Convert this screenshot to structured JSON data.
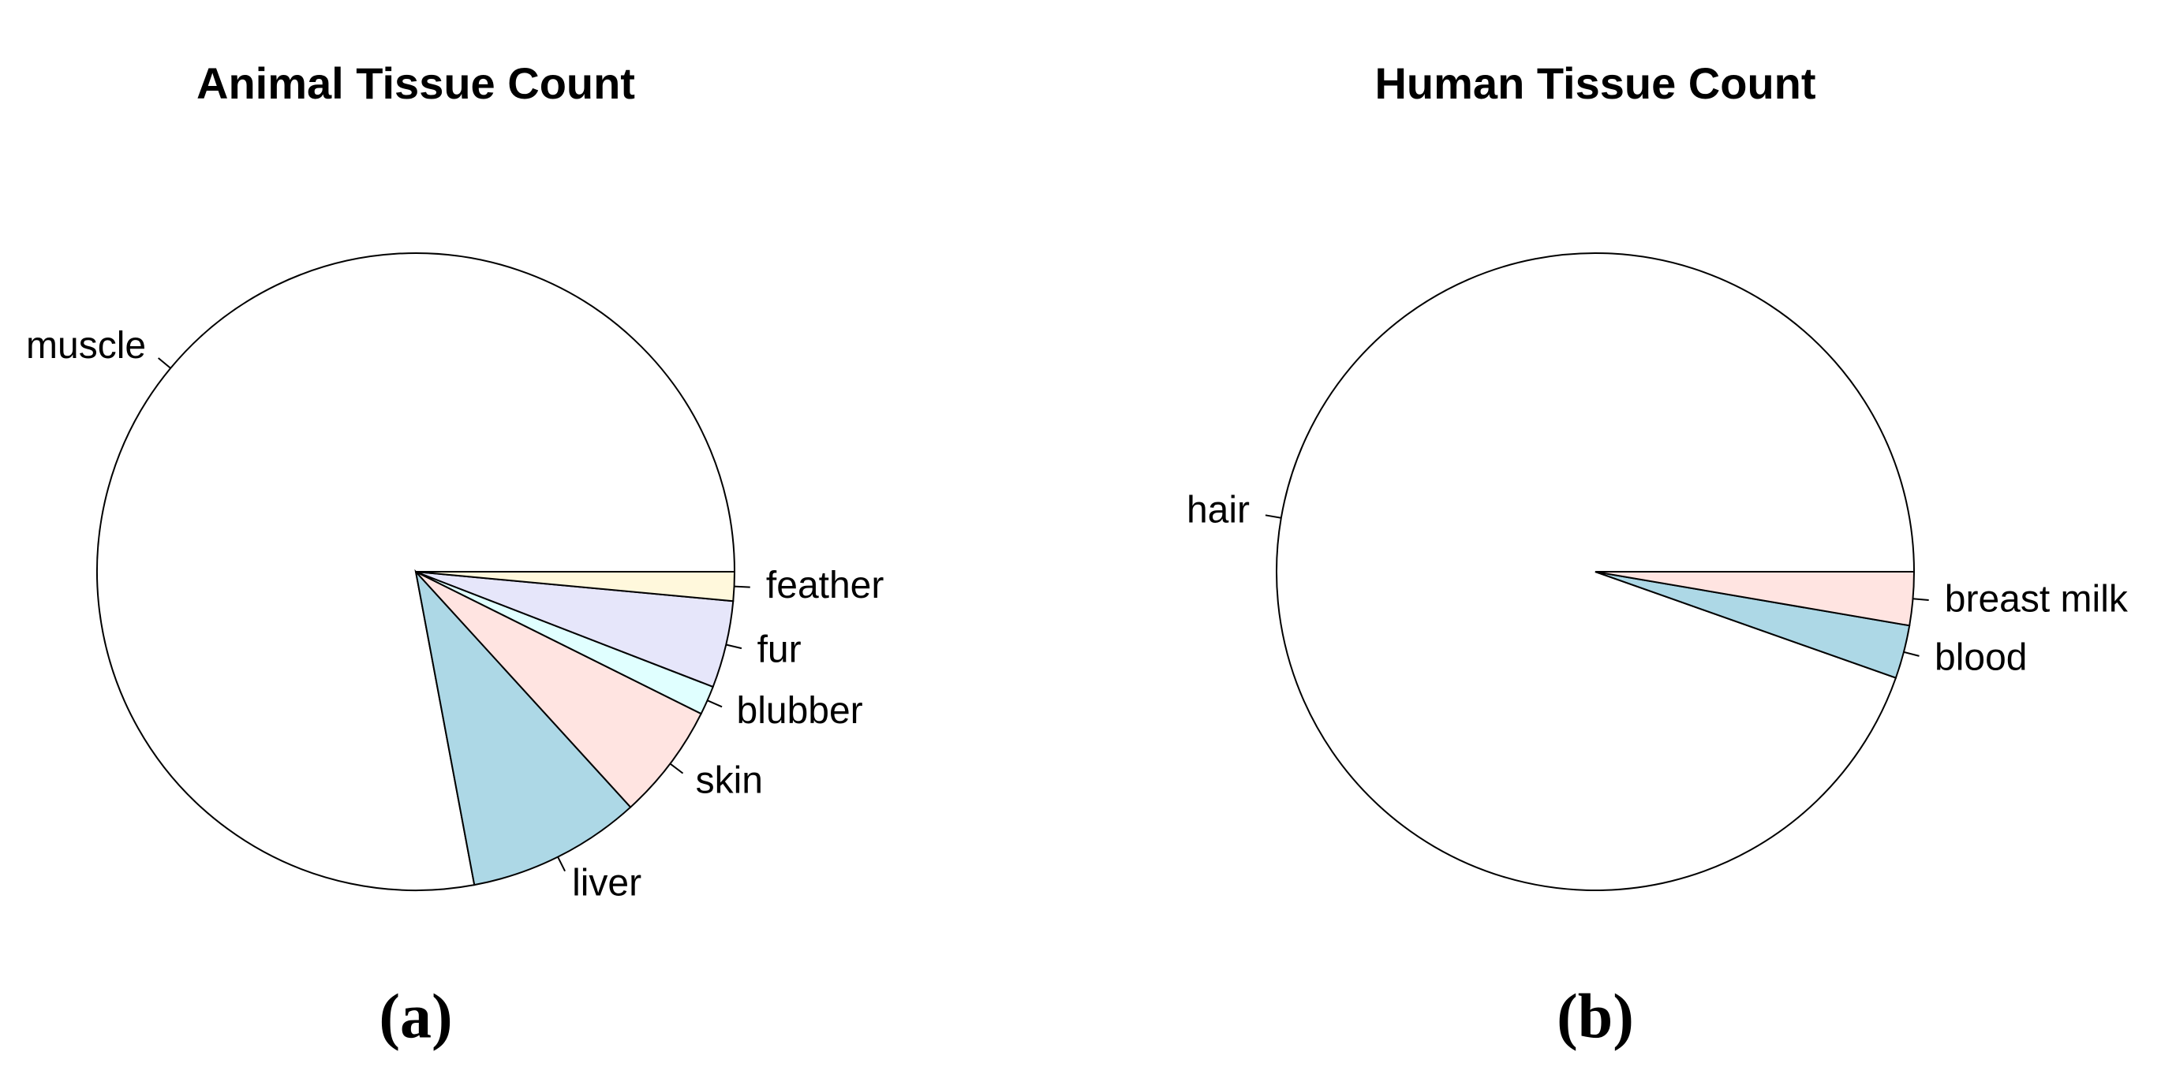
{
  "chart_data": [
    {
      "type": "pie",
      "title": "Animal Tissue Count",
      "caption": "(a)",
      "categories": [
        "muscle",
        "liver",
        "skin",
        "blubber",
        "fur",
        "feather"
      ],
      "values": [
        53,
        6,
        4,
        1,
        3,
        1
      ],
      "colors": [
        "#ffffff",
        "#add8e6",
        "#ffe4e1",
        "#e0ffff",
        "#e6e6fa",
        "#fff8dc"
      ]
    },
    {
      "type": "pie",
      "title": "Human Tissue Count",
      "caption": "(b)",
      "categories": [
        "hair",
        "blood",
        "breast milk"
      ],
      "values": [
        35,
        1,
        1
      ],
      "colors": [
        "#ffffff",
        "#add8e6",
        "#ffe4e1"
      ]
    }
  ]
}
